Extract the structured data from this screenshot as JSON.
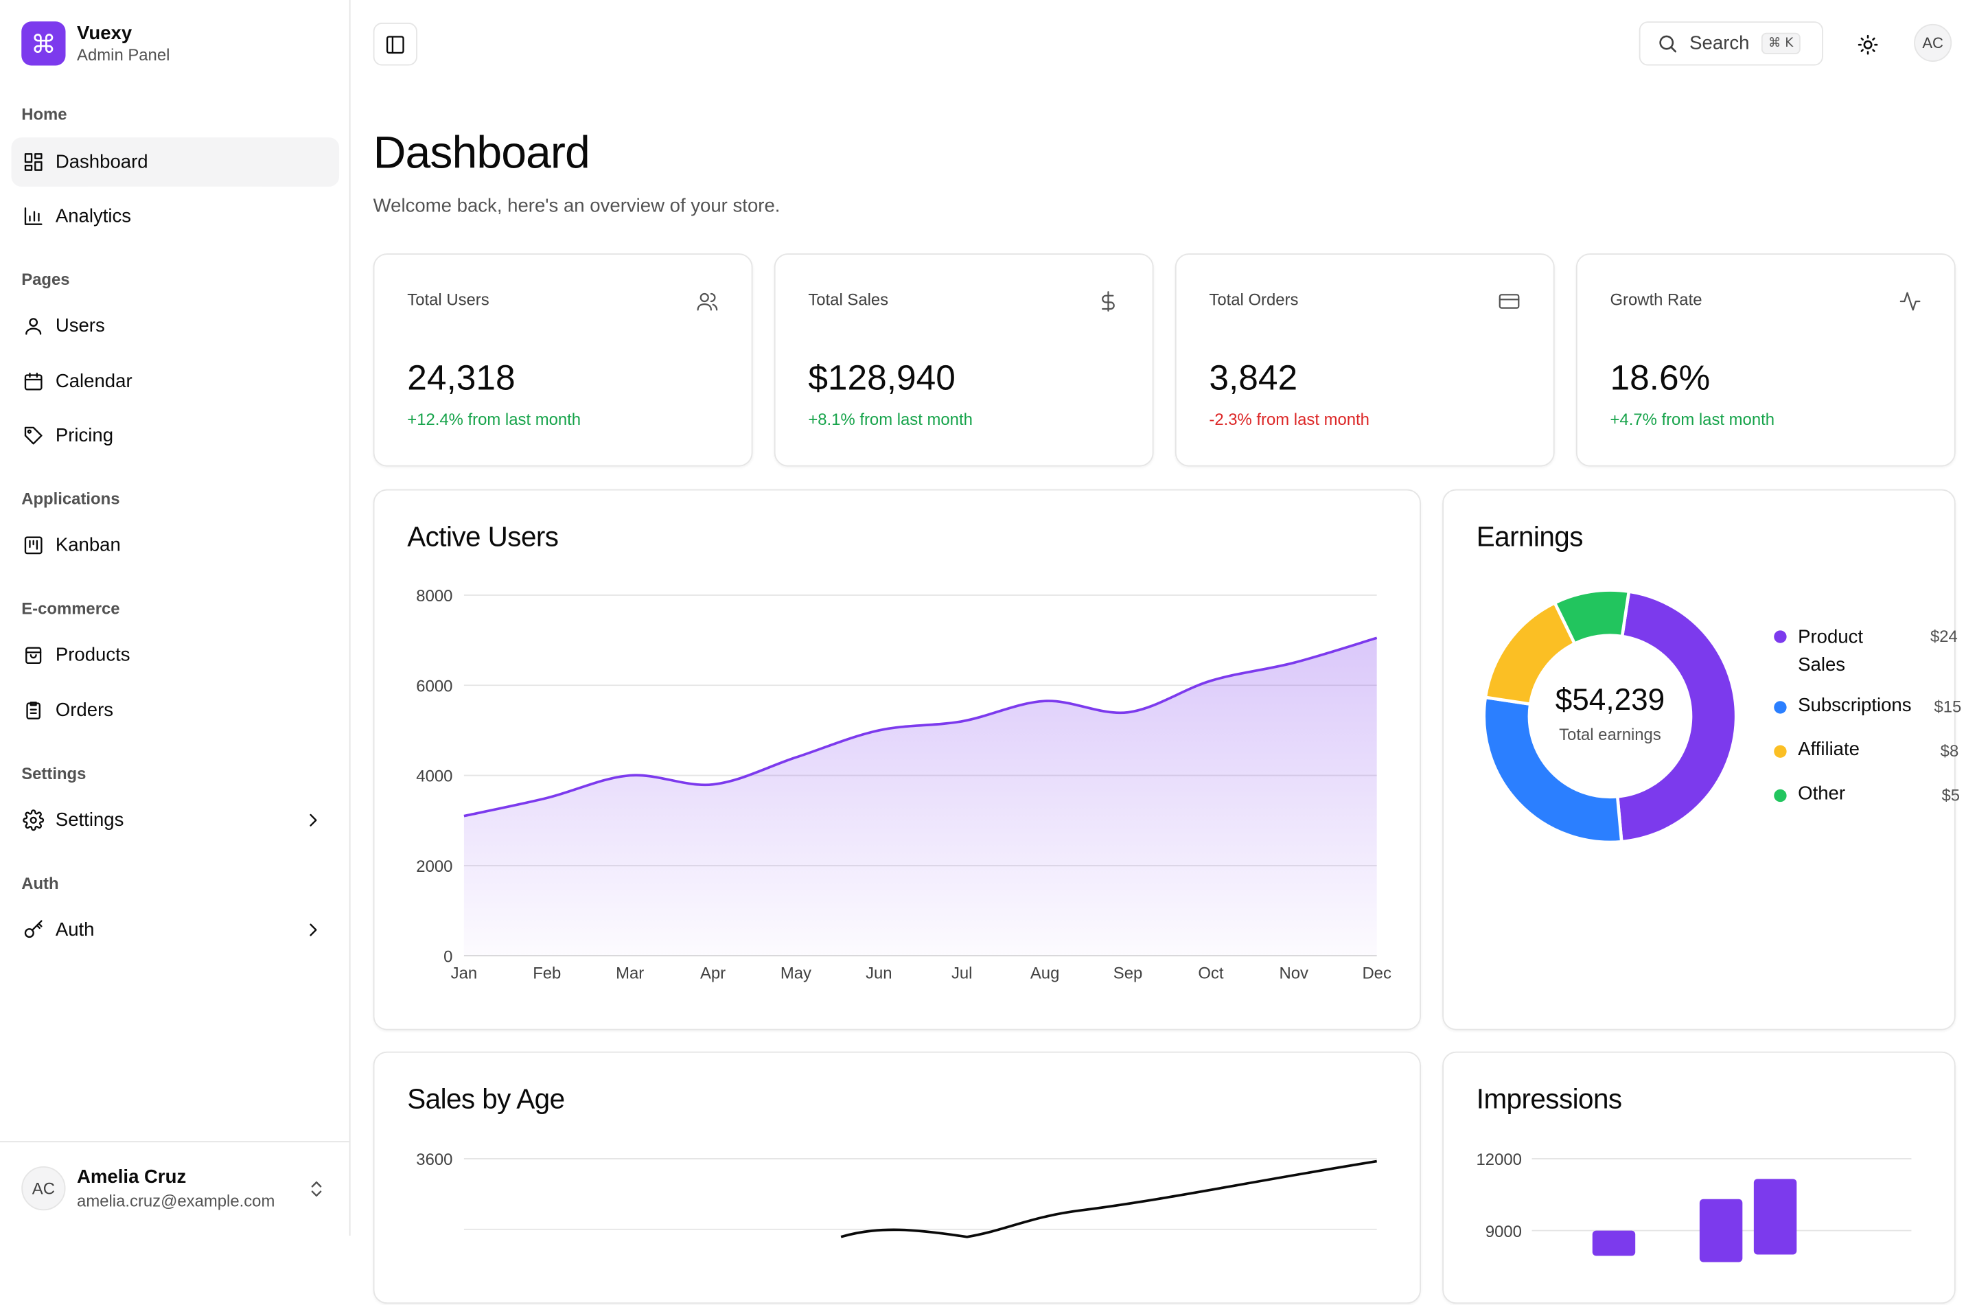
{
  "brand": {
    "title": "Vuexy",
    "subtitle": "Admin Panel",
    "logo_glyph": "⌘"
  },
  "nav": {
    "home_section": "Home",
    "dashboard": "Dashboard",
    "analytics": "Analytics",
    "pages_section": "Pages",
    "users": "Users",
    "calendar": "Calendar",
    "pricing": "Pricing",
    "applications_section": "Applications",
    "kanban": "Kanban",
    "ecommerce_section": "E-commerce",
    "products": "Products",
    "orders": "Orders",
    "settings_section": "Settings",
    "settings": "Settings",
    "auth_section": "Auth",
    "auth": "Auth"
  },
  "user": {
    "initials": "AC",
    "name": "Amelia Cruz",
    "email": "amelia.cruz@example.com"
  },
  "header": {
    "search_label": "Search",
    "search_kbd": "⌘ K",
    "avatar_initials": "AC"
  },
  "page": {
    "title": "Dashboard",
    "subtitle": "Welcome back, here's an overview of your store."
  },
  "stats": [
    {
      "title": "Total Users",
      "value": "24,318",
      "delta": "+12.4% from last month",
      "icon": "users-icon"
    },
    {
      "title": "Total Sales",
      "value": "$128,940",
      "delta": "+8.1% from last month",
      "icon": "dollar-icon"
    },
    {
      "title": "Total Orders",
      "value": "3,842",
      "delta": "-2.3% from last month",
      "icon": "credit-card-icon"
    },
    {
      "title": "Growth Rate",
      "value": "18.6%",
      "delta": "+4.7% from last month",
      "icon": "activity-icon"
    }
  ],
  "cards": {
    "active_users": "Active Users",
    "earnings": "Earnings",
    "earnings_total": "$54,239",
    "earnings_total_label": "Total earnings",
    "sales_by_age": "Sales by Age",
    "impressions": "Impressions"
  },
  "colors": {
    "accent": "#7c3aed",
    "up": "#16a34a",
    "down": "#dc2626"
  },
  "chart_data": [
    {
      "type": "area",
      "title": "Active Users",
      "categories": [
        "Jan",
        "Feb",
        "Mar",
        "Apr",
        "May",
        "Jun",
        "Jul",
        "Aug",
        "Sep",
        "Oct",
        "Nov",
        "Dec"
      ],
      "values": [
        3100,
        3500,
        4000,
        3800,
        4400,
        5000,
        5200,
        5650,
        5400,
        6100,
        6500,
        7050
      ],
      "yticks": [
        "0",
        "2000",
        "4000",
        "6000",
        "8000"
      ],
      "ylim": [
        0,
        8000
      ],
      "color": "#7c3aed"
    },
    {
      "type": "pie",
      "title": "Earnings",
      "series": [
        {
          "name": "Product Sales",
          "value": 24,
          "value_label": "$24",
          "color": "#7c3aed"
        },
        {
          "name": "Subscriptions",
          "value": 15,
          "value_label": "$15",
          "color": "#2b7fff"
        },
        {
          "name": "Affiliate",
          "value": 8,
          "value_label": "$8",
          "color": "#fbbf24"
        },
        {
          "name": "Other",
          "value": 5,
          "value_label": "$5",
          "color": "#22c55e"
        }
      ]
    },
    {
      "type": "line",
      "title": "Sales by Age",
      "yticks": [
        "3600"
      ]
    },
    {
      "type": "bar",
      "title": "Impressions",
      "yticks": [
        "12000",
        "9000"
      ]
    }
  ]
}
